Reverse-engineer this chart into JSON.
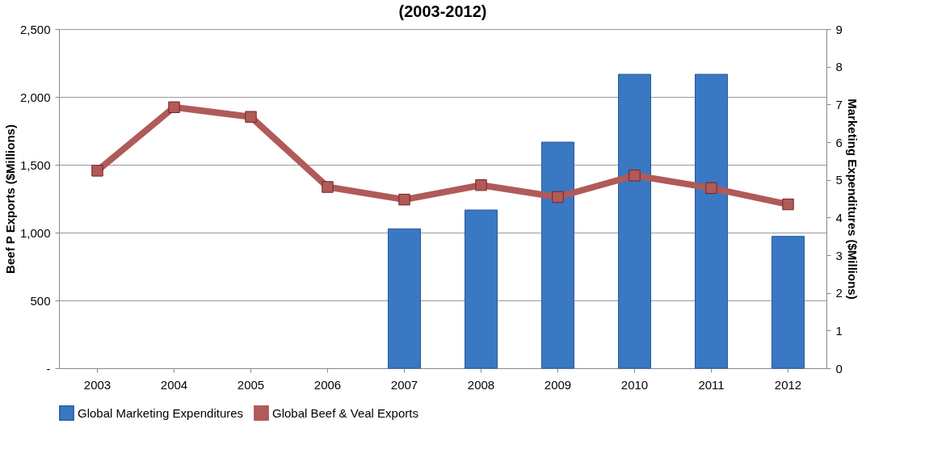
{
  "chart_data": {
    "type": "bar",
    "title": "(2003-2012)",
    "ylabel": "Beef P Exports ($Millions)",
    "y2label": "Marketing Expenditures ($Millions)",
    "categories": [
      "2003",
      "2004",
      "2005",
      "2006",
      "2007",
      "2008",
      "2009",
      "2010",
      "2011",
      "2012"
    ],
    "series": [
      {
        "name": "Global  Marketing Expenditures",
        "axis": "y2",
        "color": "#3a78c4",
        "values": [
          null,
          null,
          null,
          null,
          3.7,
          4.2,
          6.0,
          7.8,
          7.8,
          3.5
        ]
      },
      {
        "name": "Global Beef & Veal Exports",
        "type": "line",
        "color": "#b05a5a",
        "marker": "square",
        "values": [
          1456,
          1924,
          1853,
          1336,
          1243,
          1350,
          1262,
          1421,
          1328,
          1208
        ]
      }
    ],
    "ylim": [
      0,
      2500
    ],
    "yticks": [
      {
        "value": 0,
        "label": "-"
      },
      {
        "value": 500,
        "label": "500"
      },
      {
        "value": 1000,
        "label": "1,000"
      },
      {
        "value": 1500,
        "label": "1,500"
      },
      {
        "value": 2000,
        "label": "2,000"
      },
      {
        "value": 2500,
        "label": "2,500"
      }
    ],
    "y2lim": [
      0,
      9
    ],
    "y2ticks": [
      0,
      1,
      2,
      3,
      4,
      5,
      6,
      7,
      8,
      9
    ],
    "grid": "y",
    "legend": "bottom"
  }
}
